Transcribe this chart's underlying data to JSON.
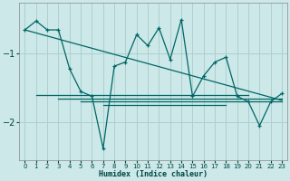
{
  "xlabel": "Humidex (Indice chaleur)",
  "bg_color": "#cce8e8",
  "grid_color": "#aacccc",
  "line_color": "#006666",
  "x_values": [
    0,
    1,
    2,
    3,
    4,
    5,
    6,
    7,
    8,
    9,
    10,
    11,
    12,
    13,
    14,
    15,
    16,
    17,
    18,
    19,
    20,
    21,
    22,
    23
  ],
  "main_y": [
    -0.65,
    -0.52,
    -0.65,
    -0.65,
    -1.22,
    -1.55,
    -1.62,
    -2.38,
    -1.18,
    -1.12,
    -0.72,
    -0.88,
    -0.62,
    -1.08,
    -0.5,
    -1.62,
    -1.32,
    -1.12,
    -1.05,
    -1.62,
    -1.7,
    -2.05,
    -1.7,
    -1.58
  ],
  "diag_line": {
    "x0": 0,
    "y0": -0.65,
    "x1": 23,
    "y1": -1.68
  },
  "flat_lines": [
    {
      "y": -1.6,
      "x_start": 1,
      "x_end": 20
    },
    {
      "y": -1.65,
      "x_start": 3,
      "x_end": 23
    },
    {
      "y": -1.7,
      "x_start": 5,
      "x_end": 23
    },
    {
      "y": -1.75,
      "x_start": 7,
      "x_end": 18
    }
  ],
  "ylim": [
    -2.55,
    -0.25
  ],
  "xlim": [
    -0.5,
    23.5
  ],
  "yticks": [
    -2,
    -1
  ],
  "xticks": [
    0,
    1,
    2,
    3,
    4,
    5,
    6,
    7,
    8,
    9,
    10,
    11,
    12,
    13,
    14,
    15,
    16,
    17,
    18,
    19,
    20,
    21,
    22,
    23
  ]
}
